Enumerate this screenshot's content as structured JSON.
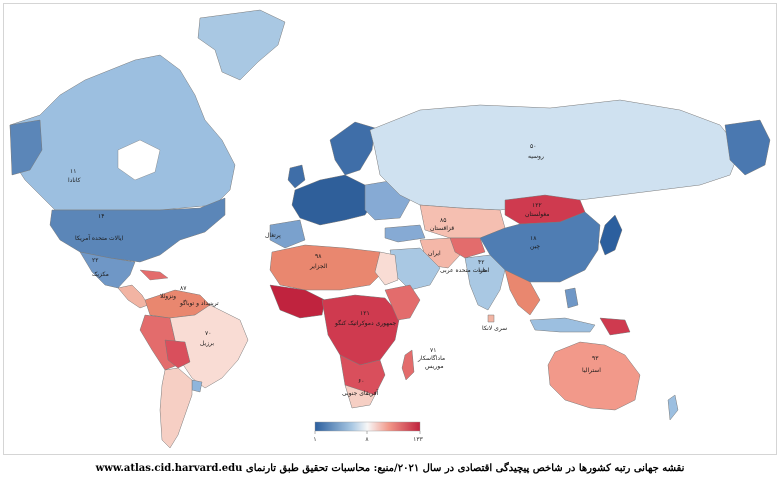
{
  "map": {
    "title": "World map of Economic Complexity Index country rankings",
    "colors": {
      "low_rank": "#2c5f9e",
      "mid": "#f7f7f7",
      "high_rank": "#c0233e",
      "ocean": "#ffffff",
      "border": "#7a7a7a"
    },
    "labels": {
      "russia_rank": "۵۰",
      "russia": "روسیه",
      "canada_rank": "۱۱",
      "canada": "کانادا",
      "usa_rank": "۱۴",
      "usa": "ایالات متحده آمریکا",
      "mexico_rank": "۲۲",
      "mexico": "مکزیک",
      "mongolia_rank": "۱۲۲",
      "mongolia": "مغولستان",
      "china_rank": "۱۸",
      "china": "چین",
      "kazakhstan_rank": "۸۵",
      "kazakhstan": "قزاقستان",
      "iran": "ایران",
      "uae": "امارات متحده عربی",
      "india_rank": "۴۲",
      "india": "هند",
      "srilanka": "سری لانکا",
      "portugal": "پرتغال",
      "algeria_rank": "۹۸",
      "algeria": "الجزایر",
      "drc_rank": "۱۲۱",
      "drc": "جمهوری دموکراتیک کنگو",
      "madagascar_rank": "۷۱",
      "madagascar": "ماداگاسکار",
      "mauritius": "موریس",
      "south_africa_rank": "۶۰",
      "south_africa": "آفریقای جنوبی",
      "brazil_rank": "۷۰",
      "brazil": "برزیل",
      "venezuela_rank": "۸۷",
      "venezuela": "ونزوئلا",
      "trinidad": "ترینیداد و توباگو",
      "australia_rank": "۹۳",
      "australia": "استرالیا"
    },
    "legend": {
      "min": "۱",
      "mid": "۸",
      "max": "۱۳۳"
    }
  },
  "caption": {
    "text": "نقشه جهانی رتبه کشورها در شاخص پیچیدگی اقتصادی در سال ۲۰۲۱/منبع: محاسبات تحقیق طبق تارنمای",
    "url": "www.atlas.cid.harvard.edu"
  }
}
